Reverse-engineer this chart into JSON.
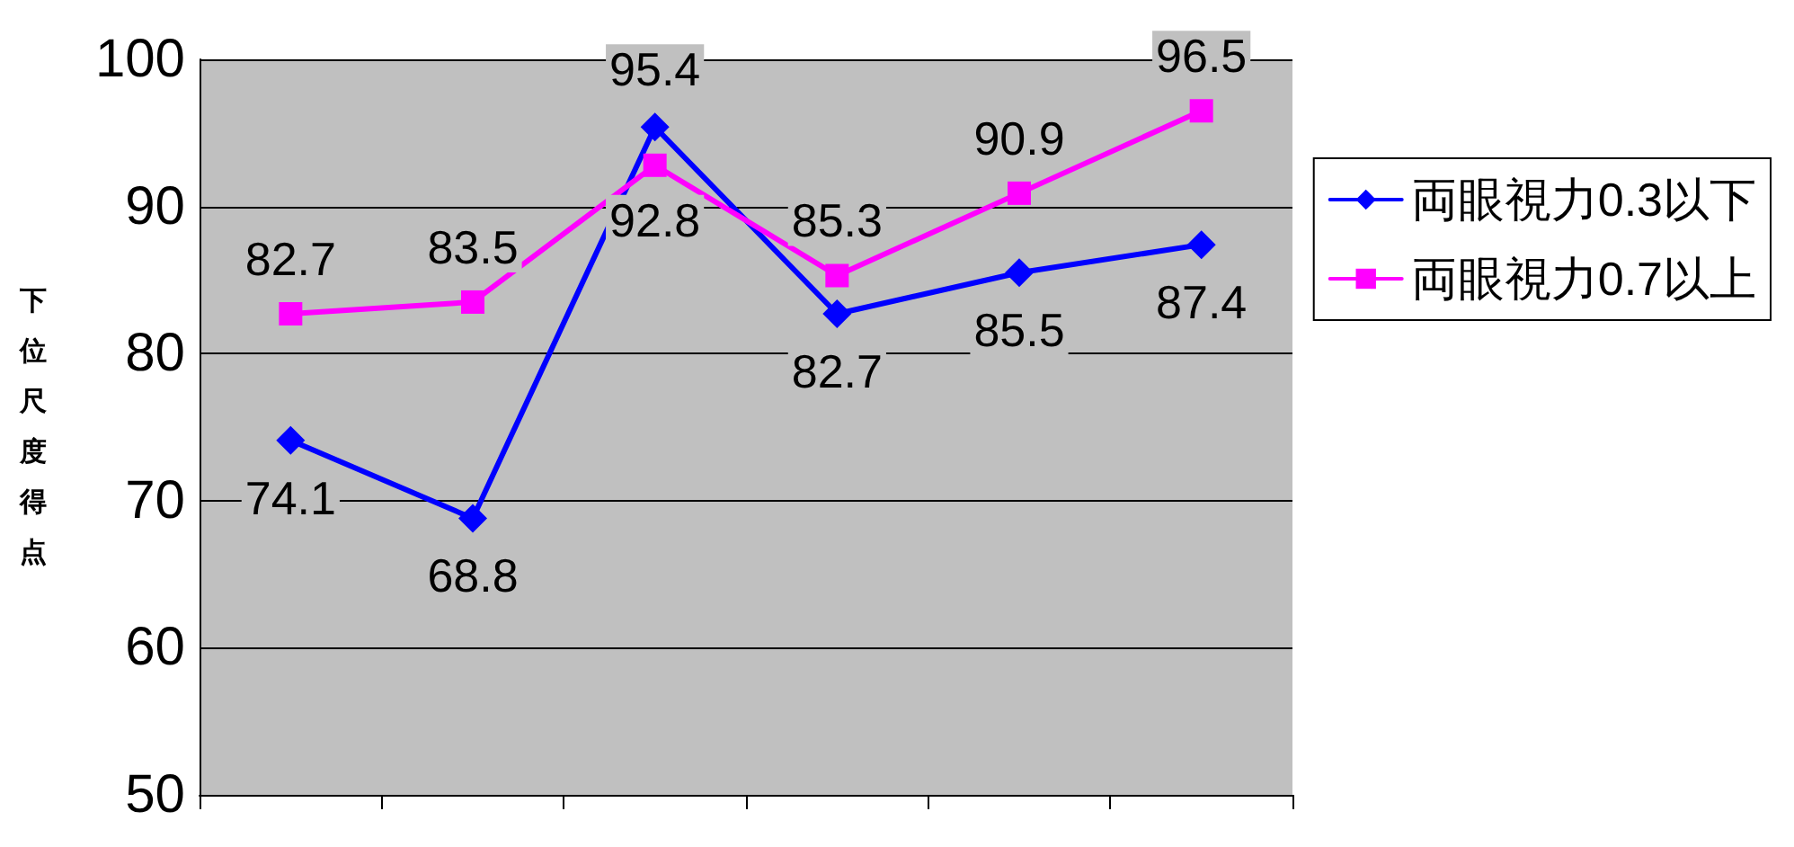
{
  "chart_data": {
    "type": "line",
    "ylabel": "下位尺度得点",
    "categories": [
      null,
      null,
      null,
      null,
      null,
      null
    ],
    "series": [
      {
        "name": "両眼視力0.3以下",
        "color": "#0000ff",
        "marker": "diamond",
        "values": [
          74.1,
          68.8,
          95.4,
          82.7,
          85.5,
          87.4
        ]
      },
      {
        "name": "両眼視力0.7以上",
        "color": "#ff00ff",
        "marker": "square",
        "values": [
          82.7,
          83.5,
          92.8,
          85.3,
          90.9,
          96.5
        ]
      }
    ],
    "ylim": [
      50,
      100
    ],
    "yticks": [
      50,
      60,
      70,
      80,
      90,
      100
    ],
    "grid": "y",
    "legend": "right",
    "data_labels": true
  }
}
